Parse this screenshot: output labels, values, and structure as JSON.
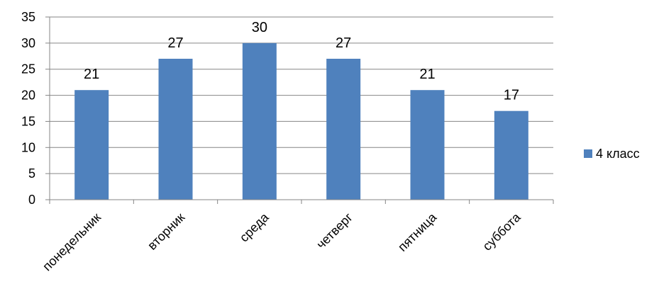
{
  "chart_data": {
    "type": "bar",
    "categories": [
      "понедельник",
      "вторник",
      "среда",
      "четверг",
      "пятница",
      "суббота"
    ],
    "series": [
      {
        "name": "4 класс",
        "values": [
          21,
          27,
          30,
          27,
          21,
          17
        ],
        "color": "#4F81BD"
      }
    ],
    "y_ticks": [
      "0",
      "5",
      "10",
      "15",
      "20",
      "25",
      "30",
      "35"
    ],
    "ylim": [
      0,
      35
    ],
    "grid": true,
    "legend_position": "right",
    "data_labels": [
      "21",
      "27",
      "30",
      "27",
      "21",
      "17"
    ]
  }
}
